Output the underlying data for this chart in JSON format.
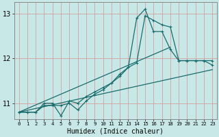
{
  "xlabel": "Humidex (Indice chaleur)",
  "bg_color": "#c8e8e8",
  "grid_color": "#d4a0a0",
  "line_color": "#1a6b6b",
  "spine_color": "#888888",
  "xlim": [
    -0.5,
    23.5
  ],
  "ylim": [
    10.65,
    13.25
  ],
  "yticks": [
    11,
    12,
    13
  ],
  "xtick_labels": [
    "0",
    "1",
    "2",
    "3",
    "4",
    "5",
    "6",
    "7",
    "8",
    "9",
    "10",
    "11",
    "12",
    "13",
    "14",
    "15",
    "16",
    "17",
    "18",
    "19",
    "20",
    "21",
    "22",
    "23"
  ],
  "series1_x": [
    0,
    1,
    2,
    3,
    4,
    5,
    6,
    7,
    8,
    9,
    10,
    11,
    12,
    13,
    14,
    15,
    16,
    17,
    18,
    19,
    20,
    21,
    22,
    23
  ],
  "series1_y": [
    10.8,
    10.8,
    10.8,
    11.0,
    11.0,
    10.72,
    11.05,
    11.0,
    11.15,
    11.25,
    11.35,
    11.45,
    11.6,
    11.8,
    11.9,
    12.95,
    12.85,
    12.75,
    12.7,
    11.95,
    11.95,
    11.95,
    11.95,
    11.85
  ],
  "series2_x": [
    0,
    1,
    2,
    3,
    4,
    5,
    6,
    7,
    8,
    9,
    10,
    11,
    12,
    13,
    14,
    15,
    16,
    17,
    18,
    19,
    20,
    21,
    22,
    23
  ],
  "series2_y": [
    10.8,
    10.8,
    10.8,
    10.95,
    10.95,
    10.95,
    11.0,
    10.85,
    11.05,
    11.2,
    11.3,
    11.45,
    11.65,
    11.8,
    12.9,
    13.1,
    12.6,
    12.6,
    12.2,
    11.95,
    11.95,
    11.95,
    11.95,
    11.95
  ],
  "series3_x": [
    0,
    23
  ],
  "series3_y": [
    10.8,
    11.75
  ],
  "series4_x": [
    0,
    18
  ],
  "series4_y": [
    10.8,
    12.25
  ]
}
